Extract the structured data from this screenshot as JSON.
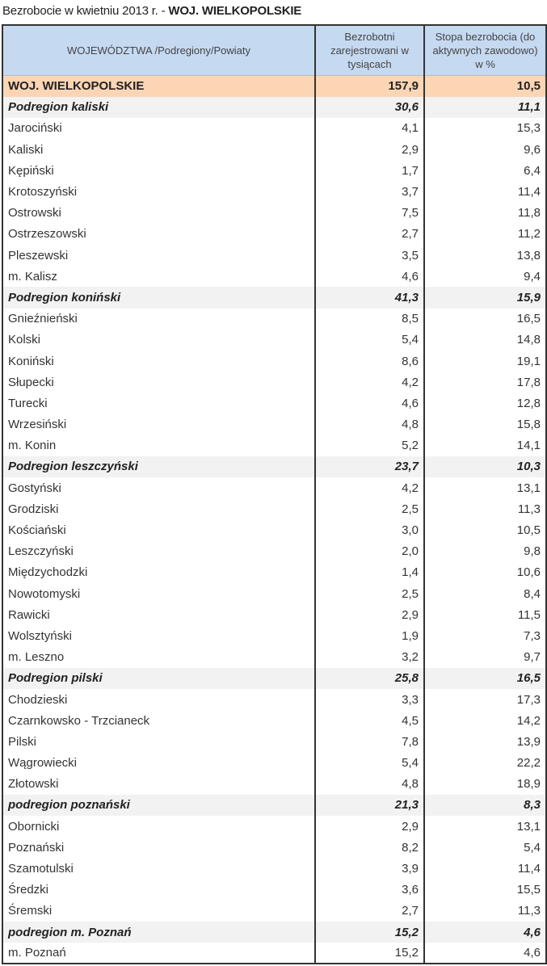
{
  "title": {
    "prefix": "Bezrobocie w kwietniu 2013 r. - ",
    "region": "WOJ. WIELKOPOLSKIE"
  },
  "headers": {
    "col1": "WOJEWÓDZTWA /Podregiony/Powiaty",
    "col2": "Bezrobotni zarejestrowani w tysiącach",
    "col3": "Stopa bezrobocia (do aktywnych zawodowo) w %"
  },
  "rows": [
    {
      "type": "woj",
      "name": "WOJ. WIELKOPOLSKIE",
      "unemployed": "157,9",
      "rate": "10,5"
    },
    {
      "type": "sub",
      "name": "Podregion kaliski",
      "unemployed": "30,6",
      "rate": "11,1"
    },
    {
      "type": "pow",
      "name": "Jarociński",
      "unemployed": "4,1",
      "rate": "15,3"
    },
    {
      "type": "pow",
      "name": "Kaliski",
      "unemployed": "2,9",
      "rate": "9,6"
    },
    {
      "type": "pow",
      "name": "Kępiński",
      "unemployed": "1,7",
      "rate": "6,4"
    },
    {
      "type": "pow",
      "name": "Krotoszyński",
      "unemployed": "3,7",
      "rate": "11,4"
    },
    {
      "type": "pow",
      "name": "Ostrowski",
      "unemployed": "7,5",
      "rate": "11,8"
    },
    {
      "type": "pow",
      "name": "Ostrzeszowski",
      "unemployed": "2,7",
      "rate": "11,2"
    },
    {
      "type": "pow",
      "name": "Pleszewski",
      "unemployed": "3,5",
      "rate": "13,8"
    },
    {
      "type": "pow",
      "name": "m. Kalisz",
      "unemployed": "4,6",
      "rate": "9,4"
    },
    {
      "type": "sub",
      "name": "Podregion koniński",
      "unemployed": "41,3",
      "rate": "15,9"
    },
    {
      "type": "pow",
      "name": "Gnieźnieński",
      "unemployed": "8,5",
      "rate": "16,5"
    },
    {
      "type": "pow",
      "name": "Kolski",
      "unemployed": "5,4",
      "rate": "14,8"
    },
    {
      "type": "pow",
      "name": "Koniński",
      "unemployed": "8,6",
      "rate": "19,1"
    },
    {
      "type": "pow",
      "name": "Słupecki",
      "unemployed": "4,2",
      "rate": "17,8"
    },
    {
      "type": "pow",
      "name": "Turecki",
      "unemployed": "4,6",
      "rate": "12,8"
    },
    {
      "type": "pow",
      "name": "Wrzesiński",
      "unemployed": "4,8",
      "rate": "15,8"
    },
    {
      "type": "pow",
      "name": "m. Konin",
      "unemployed": "5,2",
      "rate": "14,1"
    },
    {
      "type": "sub",
      "name": "Podregion leszczyński",
      "unemployed": "23,7",
      "rate": "10,3"
    },
    {
      "type": "pow",
      "name": "Gostyński",
      "unemployed": "4,2",
      "rate": "13,1"
    },
    {
      "type": "pow",
      "name": "Grodziski",
      "unemployed": "2,5",
      "rate": "11,3"
    },
    {
      "type": "pow",
      "name": "Kościański",
      "unemployed": "3,0",
      "rate": "10,5"
    },
    {
      "type": "pow",
      "name": "Leszczyński",
      "unemployed": "2,0",
      "rate": "9,8"
    },
    {
      "type": "pow",
      "name": "Międzychodzki",
      "unemployed": "1,4",
      "rate": "10,6"
    },
    {
      "type": "pow",
      "name": "Nowotomyski",
      "unemployed": "2,5",
      "rate": "8,4"
    },
    {
      "type": "pow",
      "name": "Rawicki",
      "unemployed": "2,9",
      "rate": "11,5"
    },
    {
      "type": "pow",
      "name": "Wolsztyński",
      "unemployed": "1,9",
      "rate": "7,3"
    },
    {
      "type": "pow",
      "name": "m. Leszno",
      "unemployed": "3,2",
      "rate": "9,7"
    },
    {
      "type": "sub",
      "name": "Podregion pilski",
      "unemployed": "25,8",
      "rate": "16,5"
    },
    {
      "type": "pow",
      "name": "Chodzieski",
      "unemployed": "3,3",
      "rate": "17,3"
    },
    {
      "type": "pow",
      "name": "Czarnkowsko - Trzcianeck",
      "unemployed": "4,5",
      "rate": "14,2"
    },
    {
      "type": "pow",
      "name": "Pilski",
      "unemployed": "7,8",
      "rate": "13,9"
    },
    {
      "type": "pow",
      "name": "Wągrowiecki",
      "unemployed": "5,4",
      "rate": "22,2"
    },
    {
      "type": "pow",
      "name": "Złotowski",
      "unemployed": "4,8",
      "rate": "18,9"
    },
    {
      "type": "sub",
      "name": "podregion poznański",
      "unemployed": "21,3",
      "rate": "8,3"
    },
    {
      "type": "pow",
      "name": "Obornicki",
      "unemployed": "2,9",
      "rate": "13,1"
    },
    {
      "type": "pow",
      "name": "Poznański",
      "unemployed": "8,2",
      "rate": "5,4"
    },
    {
      "type": "pow",
      "name": "Szamotulski",
      "unemployed": "3,9",
      "rate": "11,4"
    },
    {
      "type": "pow",
      "name": "Średzki",
      "unemployed": "3,6",
      "rate": "15,5"
    },
    {
      "type": "pow",
      "name": "Śremski",
      "unemployed": "2,7",
      "rate": "11,3"
    },
    {
      "type": "sub",
      "name": "podregion m. Poznań",
      "unemployed": "15,2",
      "rate": "4,6"
    },
    {
      "type": "pow",
      "name": "m. Poznań",
      "unemployed": "15,2",
      "rate": "4,6"
    }
  ]
}
